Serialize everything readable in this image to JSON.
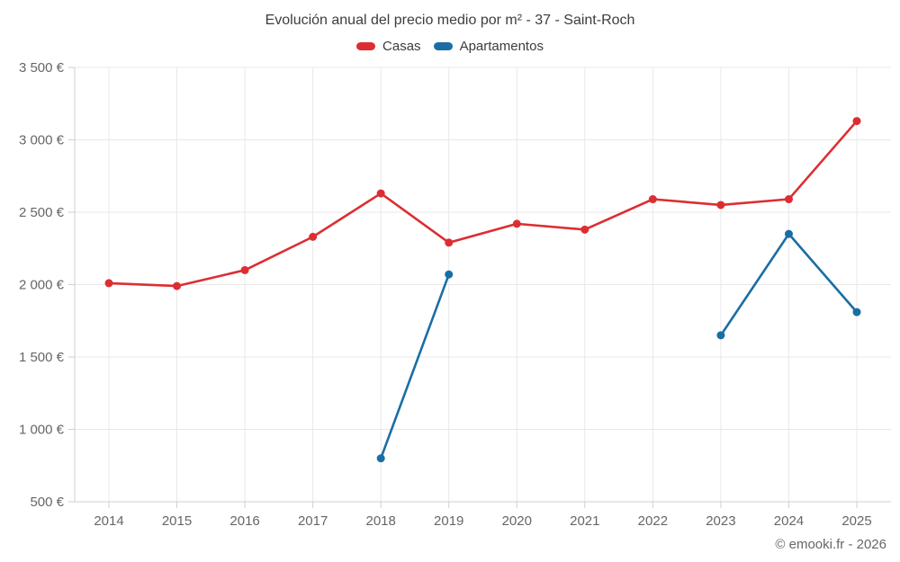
{
  "chart_data": {
    "type": "line",
    "title": "Evolución anual del precio medio por m² - 37 - Saint-Roch",
    "categories": [
      "2014",
      "2015",
      "2016",
      "2017",
      "2018",
      "2019",
      "2020",
      "2021",
      "2022",
      "2023",
      "2024",
      "2025"
    ],
    "series": [
      {
        "name": "Casas",
        "color": "#dc2e32",
        "values": [
          2010,
          1990,
          2100,
          2330,
          2630,
          2290,
          2420,
          2380,
          2590,
          2550,
          2590,
          3130
        ]
      },
      {
        "name": "Apartamentos",
        "color": "#1a6ea5",
        "values": [
          null,
          null,
          null,
          null,
          800,
          2070,
          null,
          null,
          null,
          1650,
          2350,
          1810
        ]
      }
    ],
    "xlabel": "",
    "ylabel": "",
    "ylim": [
      500,
      3500
    ],
    "ytick_step": 500,
    "ytick_suffix": " €",
    "grid": true,
    "legend_position": "top",
    "footer": "© emooki.fr - 2026"
  },
  "colors": {
    "grid": "#e8e8e8",
    "axis": "#cfcfcf",
    "tick": "#cfcfcf",
    "tick_label": "#666666",
    "title": "#3d3d3d"
  }
}
